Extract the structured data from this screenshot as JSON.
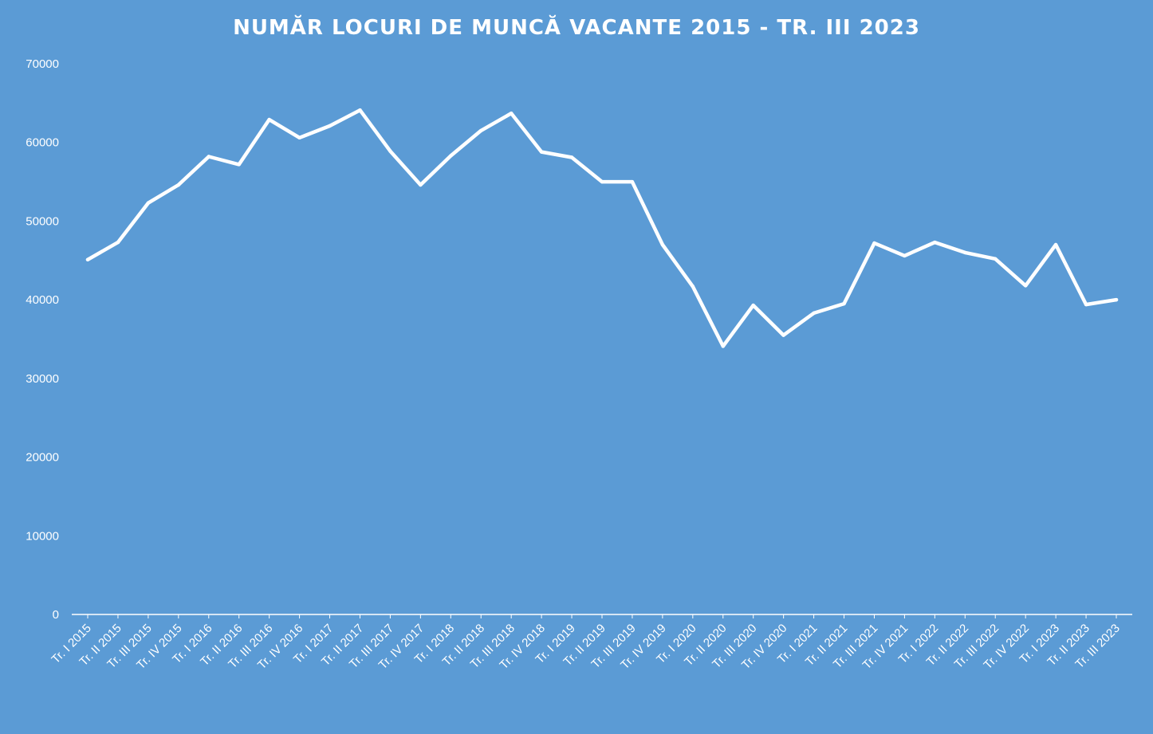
{
  "chart_data": {
    "type": "line",
    "title": "NUMĂR LOCURI DE MUNCĂ VACANTE 2015 - TR. III 2023",
    "xlabel": "",
    "ylabel": "",
    "ylim": [
      0,
      70000
    ],
    "yticks": [
      0,
      10000,
      20000,
      30000,
      40000,
      50000,
      60000,
      70000
    ],
    "grid": false,
    "drop_lines": true,
    "colors": {
      "background": "#5b9bd5",
      "line": "#ffffff",
      "drop_line_top": "#ffffff",
      "drop_line_mid": "#ed8a5c",
      "drop_line_bottom": "#ffc000"
    },
    "categories": [
      "Tr. I 2015",
      "Tr. II 2015",
      "Tr. III 2015",
      "Tr. IV 2015",
      "Tr. I 2016",
      "Tr. II 2016",
      "Tr. III 2016",
      "Tr. IV 2016",
      "Tr. I 2017",
      "Tr. II 2017",
      "Tr. III 2017",
      "Tr. IV 2017",
      "Tr. I 2018",
      "Tr. II 2018",
      "Tr. III 2018",
      "Tr. IV 2018",
      "Tr. I 2019",
      "Tr. II 2019",
      "Tr. III 2019",
      "Tr. IV 2019",
      "Tr. I 2020",
      "Tr. II 2020",
      "Tr. III 2020",
      "Tr. IV 2020",
      "Tr. I 2021",
      "Tr. II 2021",
      "Tr. III 2021",
      "Tr. IV 2021",
      "Tr. I 2022",
      "Tr. II 2022",
      "Tr. III 2022",
      "Tr. IV 2022",
      "Tr. I 2023",
      "Tr. II 2023",
      "Tr. III 2023"
    ],
    "series": [
      {
        "values": [
          45100,
          47300,
          52300,
          54600,
          58200,
          57200,
          62900,
          60600,
          62100,
          64100,
          58900,
          54600,
          58300,
          61500,
          63700,
          58800,
          58100,
          55000,
          55000,
          47000,
          41700,
          34100,
          39300,
          35500,
          38300,
          39500,
          47200,
          45600,
          47300,
          46000,
          45200,
          41800,
          47000,
          39400,
          40000
        ]
      }
    ]
  }
}
